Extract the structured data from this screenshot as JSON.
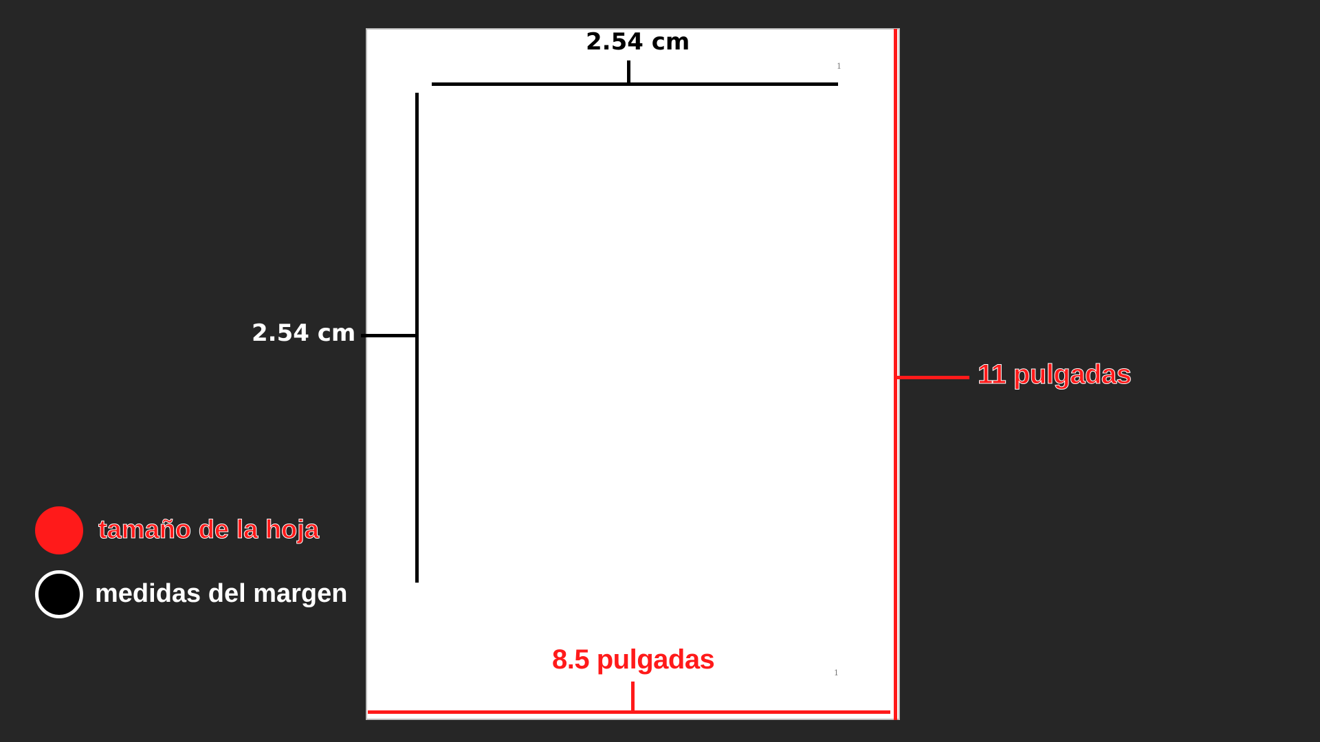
{
  "margin_measures": {
    "top_label": "2.54 cm",
    "left_label": "2.54 cm"
  },
  "sheet_size": {
    "width_label": "8.5 pulgadas",
    "height_label": "11 pulgadas"
  },
  "page_numbers": {
    "header": "1",
    "footer": "1"
  },
  "legend": {
    "items": [
      {
        "label": "tamaño de la hoja",
        "color": "#ff1a1a"
      },
      {
        "label": "medidas del margen",
        "color": "#000000"
      }
    ]
  },
  "colors": {
    "background": "#262626",
    "sheet": "#ffffff",
    "sheet_lines": "#ff1a1a",
    "margin_lines": "#000000"
  }
}
